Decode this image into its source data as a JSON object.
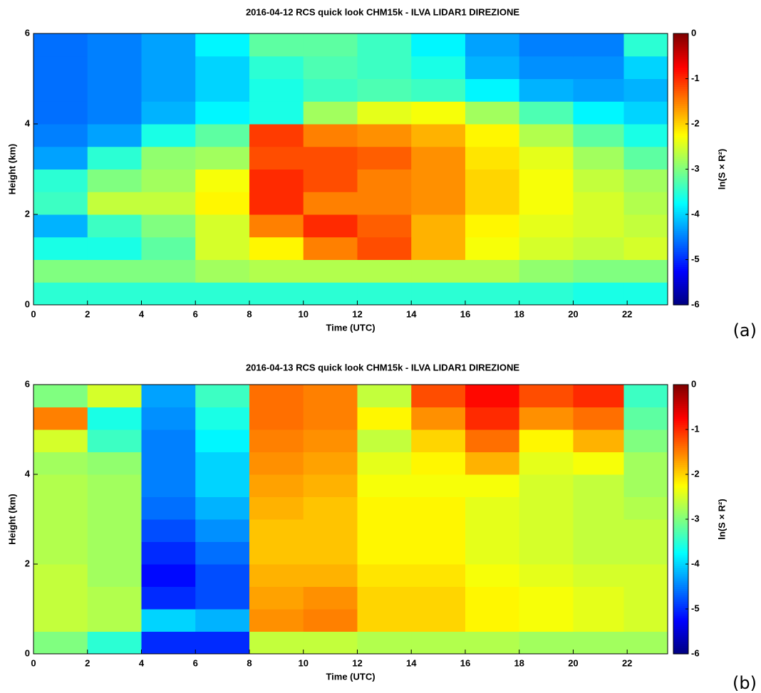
{
  "chart_data": [
    {
      "type": "heatmap",
      "title": "2016-04-12 RCS quick look CHM15k - ILVA LIDAR1 DIREZIONE",
      "xlabel": "Time (UTC)",
      "ylabel": "Height (km)",
      "colorbar_label": "ln(S × R²)",
      "panel_label": "(a)",
      "colormap": "jet",
      "x": [
        1,
        3,
        5,
        7,
        9,
        11,
        13,
        15,
        17,
        19,
        21,
        22.75
      ],
      "y": [
        0.25,
        0.75,
        1.25,
        1.75,
        2.25,
        2.75,
        3.25,
        3.75,
        4.25,
        4.75,
        5.25,
        5.75
      ],
      "values": [
        [
          -3.5,
          -3.5,
          -3.5,
          -3.5,
          -3.5,
          -3.5,
          -3.5,
          -3.5,
          -3.5,
          -3.5,
          -3.6,
          -3.6
        ],
        [
          -3.0,
          -3.0,
          -3.0,
          -2.8,
          -2.7,
          -2.7,
          -2.7,
          -2.7,
          -2.7,
          -2.9,
          -3.0,
          -3.0
        ],
        [
          -3.6,
          -3.6,
          -3.2,
          -2.5,
          -2.2,
          -1.5,
          -1.2,
          -1.8,
          -2.3,
          -2.5,
          -2.6,
          -2.5
        ],
        [
          -4.2,
          -3.4,
          -3.0,
          -2.5,
          -1.5,
          -1.0,
          -1.3,
          -1.8,
          -2.2,
          -2.4,
          -2.5,
          -2.6
        ],
        [
          -3.4,
          -2.6,
          -2.6,
          -2.2,
          -1.0,
          -1.5,
          -1.5,
          -1.6,
          -2.0,
          -2.3,
          -2.5,
          -2.7
        ],
        [
          -3.5,
          -3.0,
          -2.8,
          -2.3,
          -1.0,
          -1.2,
          -1.5,
          -1.6,
          -2.0,
          -2.3,
          -2.6,
          -2.8
        ],
        [
          -4.3,
          -3.5,
          -2.9,
          -2.8,
          -1.2,
          -1.2,
          -1.3,
          -1.6,
          -2.1,
          -2.4,
          -2.8,
          -3.2
        ],
        [
          -4.5,
          -4.3,
          -3.6,
          -3.2,
          -1.1,
          -1.5,
          -1.6,
          -1.8,
          -2.2,
          -2.7,
          -3.2,
          -3.6
        ],
        [
          -4.6,
          -4.5,
          -4.2,
          -3.8,
          -3.6,
          -2.8,
          -2.4,
          -2.3,
          -2.8,
          -3.3,
          -3.8,
          -4.0
        ],
        [
          -4.6,
          -4.5,
          -4.3,
          -4.0,
          -3.6,
          -3.4,
          -3.3,
          -3.4,
          -3.8,
          -4.2,
          -4.3,
          -4.2
        ],
        [
          -4.6,
          -4.5,
          -4.3,
          -4.0,
          -3.5,
          -3.3,
          -3.4,
          -3.6,
          -4.2,
          -4.4,
          -4.4,
          -4.0
        ],
        [
          -4.6,
          -4.5,
          -4.3,
          -3.8,
          -3.2,
          -3.2,
          -3.4,
          -3.8,
          -4.3,
          -4.5,
          -4.5,
          -3.5
        ]
      ],
      "xlim": [
        0,
        23.5
      ],
      "ylim": [
        0,
        6
      ],
      "xticks": [
        0,
        2,
        4,
        6,
        8,
        10,
        12,
        14,
        16,
        18,
        20,
        22
      ],
      "yticks": [
        0,
        2,
        4,
        6
      ],
      "clim": [
        -6,
        0
      ],
      "cticks": [
        0,
        -1,
        -2,
        -3,
        -4,
        -5,
        -6
      ]
    },
    {
      "type": "heatmap",
      "title": "2016-04-13 RCS quick look CHM15k - ILVA LIDAR1 DIREZIONE",
      "xlabel": "Time (UTC)",
      "ylabel": "Height (km)",
      "colorbar_label": "ln(S × R²)",
      "panel_label": "(b)",
      "colormap": "jet",
      "x": [
        1,
        3,
        5,
        7,
        9,
        11,
        13,
        15,
        17,
        19,
        21,
        22.75
      ],
      "y": [
        0.25,
        0.75,
        1.25,
        1.75,
        2.25,
        2.75,
        3.25,
        3.75,
        4.25,
        4.75,
        5.25,
        5.75
      ],
      "values": [
        [
          -3.0,
          -3.5,
          -5.0,
          -5.0,
          -2.6,
          -2.6,
          -2.7,
          -2.7,
          -2.7,
          -2.8,
          -2.8,
          -2.8
        ],
        [
          -2.6,
          -2.7,
          -4.0,
          -4.2,
          -1.6,
          -1.5,
          -2.0,
          -2.0,
          -2.2,
          -2.3,
          -2.4,
          -2.5
        ],
        [
          -2.6,
          -2.7,
          -5.0,
          -4.8,
          -1.7,
          -1.6,
          -2.0,
          -2.0,
          -2.2,
          -2.3,
          -2.4,
          -2.5
        ],
        [
          -2.6,
          -2.8,
          -5.2,
          -4.8,
          -1.8,
          -1.8,
          -2.1,
          -2.1,
          -2.3,
          -2.4,
          -2.5,
          -2.5
        ],
        [
          -2.7,
          -2.8,
          -5.0,
          -4.6,
          -1.9,
          -1.9,
          -2.2,
          -2.2,
          -2.4,
          -2.5,
          -2.6,
          -2.6
        ],
        [
          -2.7,
          -2.8,
          -4.8,
          -4.4,
          -1.9,
          -1.9,
          -2.2,
          -2.2,
          -2.4,
          -2.5,
          -2.6,
          -2.6
        ],
        [
          -2.7,
          -2.8,
          -4.6,
          -4.2,
          -1.8,
          -1.9,
          -2.2,
          -2.2,
          -2.4,
          -2.5,
          -2.6,
          -2.7
        ],
        [
          -2.7,
          -2.8,
          -4.5,
          -4.0,
          -1.7,
          -1.8,
          -2.3,
          -2.3,
          -2.3,
          -2.5,
          -2.6,
          -2.8
        ],
        [
          -2.8,
          -2.9,
          -4.5,
          -4.0,
          -1.6,
          -1.7,
          -2.4,
          -2.2,
          -1.8,
          -2.4,
          -2.3,
          -2.8
        ],
        [
          -2.5,
          -3.4,
          -4.5,
          -3.8,
          -1.5,
          -1.6,
          -2.6,
          -2.0,
          -1.4,
          -2.2,
          -1.8,
          -3.0
        ],
        [
          -1.5,
          -3.6,
          -4.4,
          -3.6,
          -1.4,
          -1.5,
          -2.2,
          -1.6,
          -1.0,
          -1.6,
          -1.4,
          -3.2
        ],
        [
          -3.0,
          -2.5,
          -4.3,
          -3.4,
          -1.4,
          -1.5,
          -2.6,
          -1.2,
          -0.8,
          -1.2,
          -1.0,
          -3.4
        ]
      ],
      "xlim": [
        0,
        23.5
      ],
      "ylim": [
        0,
        6
      ],
      "xticks": [
        0,
        2,
        4,
        6,
        8,
        10,
        12,
        14,
        16,
        18,
        20,
        22
      ],
      "yticks": [
        0,
        2,
        4,
        6
      ],
      "clim": [
        -6,
        0
      ],
      "cticks": [
        0,
        -1,
        -2,
        -3,
        -4,
        -5,
        -6
      ]
    }
  ]
}
